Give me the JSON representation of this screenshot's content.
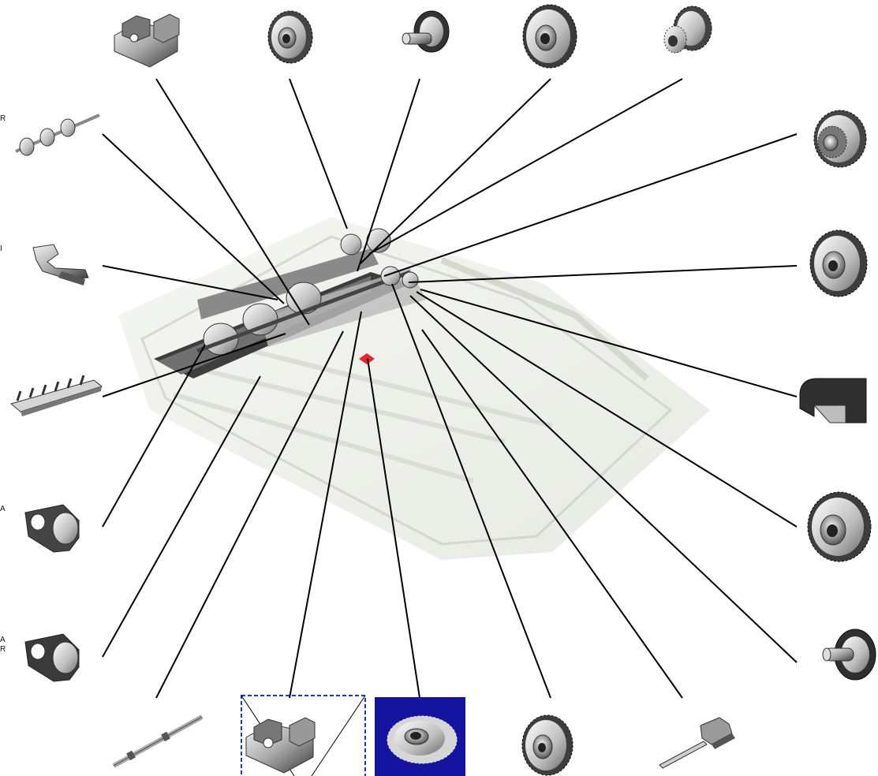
{
  "edge_labels": {
    "left_1": "R",
    "left_2": "I",
    "left_3a": "A",
    "left_3b": "",
    "left_4a": "A",
    "left_4b": "R"
  },
  "colors": {
    "line": "#000000",
    "selected_bg": "#1414a0",
    "highlight_box": "#2233cc",
    "marker": "#e8242c",
    "assembly": "#d8dcd0"
  },
  "parts": [
    {
      "name": "bracket-part-top",
      "icon": "bracket-icon"
    },
    {
      "name": "gear-part-top-2",
      "icon": "gear-icon"
    },
    {
      "name": "cam-part-top-3",
      "icon": "cam-icon"
    },
    {
      "name": "gear-part-top-4",
      "icon": "gear-icon"
    },
    {
      "name": "double-gear-part-top-5",
      "icon": "double-gear-icon"
    },
    {
      "name": "roller-shaft-part",
      "icon": "roller-shaft-icon"
    },
    {
      "name": "lever-part",
      "icon": "lever-icon"
    },
    {
      "name": "guide-plate-part",
      "icon": "guide-plate-icon"
    },
    {
      "name": "bushing-part-a",
      "icon": "bushing-icon"
    },
    {
      "name": "bushing-part-b",
      "icon": "bushing-icon"
    },
    {
      "name": "shaft-part-bottom",
      "icon": "shaft-icon"
    },
    {
      "name": "bracket-part-bottom-selected",
      "icon": "bracket-icon"
    },
    {
      "name": "gear-part-bottom-highlighted",
      "icon": "gear-icon"
    },
    {
      "name": "gear-part-bottom-4",
      "icon": "gear-icon"
    },
    {
      "name": "spring-plate-part",
      "icon": "spring-plate-icon"
    },
    {
      "name": "cam-part-right-bottom",
      "icon": "cam-icon"
    },
    {
      "name": "gear-part-right-5",
      "icon": "gear-icon"
    },
    {
      "name": "cover-part",
      "icon": "cover-icon"
    },
    {
      "name": "gear-part-right-3",
      "icon": "gear-icon"
    },
    {
      "name": "double-gear-part-right-2",
      "icon": "double-gear-icon"
    }
  ]
}
